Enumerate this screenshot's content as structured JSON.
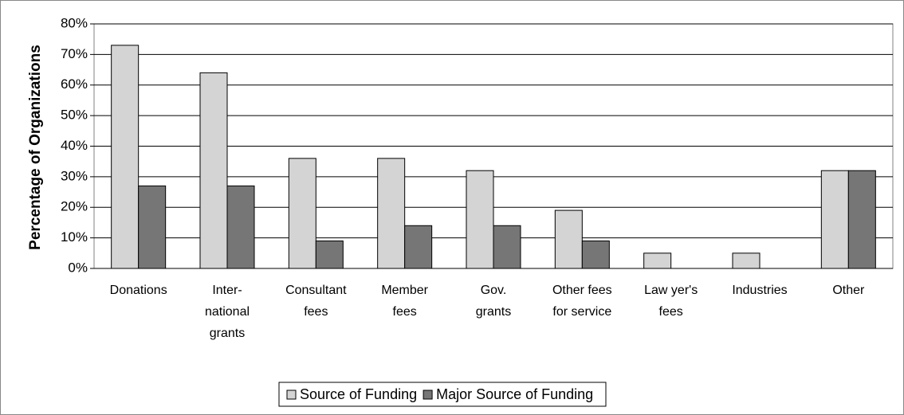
{
  "chart_data": {
    "type": "bar",
    "y_label": "Percentage of Organizations",
    "categories": [
      "Donations",
      "Inter-\nnational\ngrants",
      "Consultant\nfees",
      "Member\nfees",
      "Gov.\ngrants",
      "Other fees\nfor service",
      "Law yer's\nfees",
      "Industries",
      "Other"
    ],
    "series": [
      {
        "name": "Source of Funding",
        "color": "#d4d4d4",
        "values": [
          73,
          64,
          36,
          36,
          32,
          19,
          5,
          5,
          32
        ]
      },
      {
        "name": "Major Source of Funding",
        "color": "#767676",
        "values": [
          27,
          27,
          9,
          14,
          14,
          9,
          0,
          0,
          32
        ]
      }
    ],
    "ylim": [
      0,
      80
    ],
    "yticks": [
      {
        "value": 0,
        "label": "0%"
      },
      {
        "value": 10,
        "label": "10%"
      },
      {
        "value": 20,
        "label": "20%"
      },
      {
        "value": 30,
        "label": "30%"
      },
      {
        "value": 40,
        "label": "40%"
      },
      {
        "value": 50,
        "label": "50%"
      },
      {
        "value": 60,
        "label": "60%"
      },
      {
        "value": 70,
        "label": "70%"
      },
      {
        "value": 80,
        "label": "80%"
      }
    ],
    "grid": true,
    "legend": "bottom"
  }
}
